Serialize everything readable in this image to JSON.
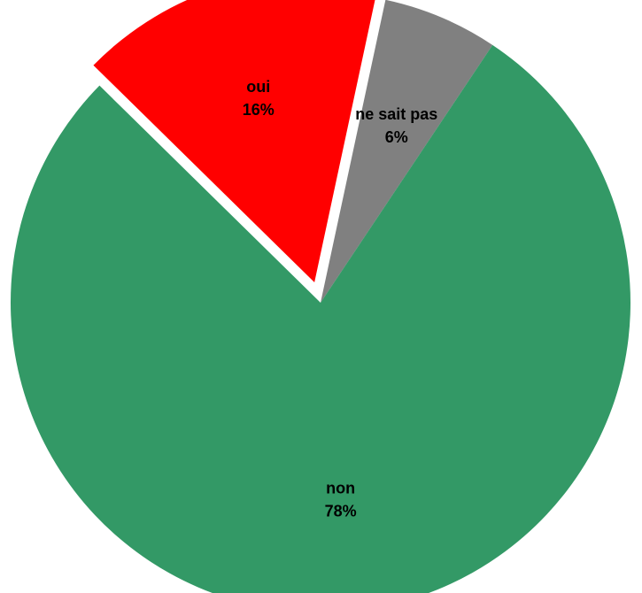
{
  "chart_data": {
    "type": "pie",
    "title": "",
    "slices": [
      {
        "label": "oui",
        "value": 16,
        "value_label": "16%",
        "color": "#ff0000",
        "exploded": true
      },
      {
        "label": "ne sait pas",
        "value": 6,
        "value_label": "6%",
        "color": "#808080",
        "exploded": false
      },
      {
        "label": "non",
        "value": 78,
        "value_label": "78%",
        "color": "#339966",
        "exploded": false
      }
    ],
    "legend": "none"
  }
}
